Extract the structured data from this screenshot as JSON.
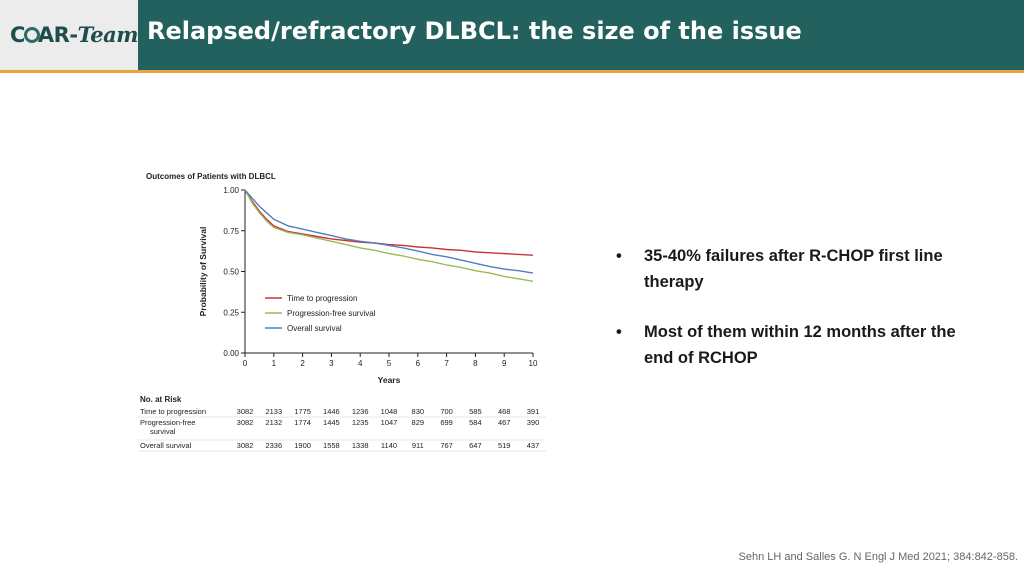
{
  "header": {
    "logo_prefix": "C",
    "logo_suffix": "AR-",
    "logo_team": "Team",
    "title": "Relapsed/refractory DLBCL: the size of the issue",
    "bg_color": "#23615e",
    "accent_color": "#e8a33c"
  },
  "bullets": [
    "35-40% failures after R-CHOP first line therapy",
    "Most of them within 12 months after the end of RCHOP"
  ],
  "citation": "Sehn LH and Salles G. N Engl J Med 2021; 384:842-858.",
  "chart_data": {
    "type": "line",
    "title": "Outcomes of Patients with DLBCL",
    "xlabel": "Years",
    "ylabel": "Probability of Survival",
    "xlim": [
      0,
      10
    ],
    "ylim": [
      0,
      1
    ],
    "xticks": [
      "0",
      "1",
      "2",
      "3",
      "4",
      "5",
      "6",
      "7",
      "8",
      "9",
      "10"
    ],
    "yticks": [
      "0.00",
      "0.25",
      "0.50",
      "0.75",
      "1.00"
    ],
    "legend_position": "lower-left",
    "series": [
      {
        "name": "Time to progression",
        "color": "#cc3333",
        "x": [
          0,
          0.25,
          0.5,
          0.75,
          1,
          1.5,
          2,
          2.5,
          3,
          3.5,
          4,
          4.5,
          5,
          5.5,
          6,
          6.5,
          7,
          7.5,
          8,
          8.5,
          9,
          9.5,
          10
        ],
        "y": [
          1.0,
          0.93,
          0.87,
          0.82,
          0.78,
          0.745,
          0.73,
          0.715,
          0.7,
          0.69,
          0.68,
          0.675,
          0.665,
          0.66,
          0.65,
          0.645,
          0.635,
          0.63,
          0.62,
          0.615,
          0.61,
          0.605,
          0.6
        ]
      },
      {
        "name": "Progression-free survival",
        "color": "#9bbb59",
        "x": [
          0,
          0.25,
          0.5,
          0.75,
          1,
          1.5,
          2,
          2.5,
          3,
          3.5,
          4,
          4.5,
          5,
          5.5,
          6,
          6.5,
          7,
          7.5,
          8,
          8.5,
          9,
          9.5,
          10
        ],
        "y": [
          1.0,
          0.92,
          0.86,
          0.81,
          0.77,
          0.74,
          0.725,
          0.705,
          0.685,
          0.665,
          0.645,
          0.63,
          0.61,
          0.595,
          0.575,
          0.56,
          0.54,
          0.525,
          0.505,
          0.49,
          0.47,
          0.455,
          0.44
        ]
      },
      {
        "name": "Overall survival",
        "color": "#4f81bd",
        "x": [
          0,
          0.25,
          0.5,
          0.75,
          1,
          1.5,
          2,
          2.5,
          3,
          3.5,
          4,
          4.5,
          5,
          5.5,
          6,
          6.5,
          7,
          7.5,
          8,
          8.5,
          9,
          9.5,
          10
        ],
        "y": [
          1.0,
          0.95,
          0.9,
          0.86,
          0.82,
          0.78,
          0.76,
          0.74,
          0.72,
          0.7,
          0.685,
          0.675,
          0.66,
          0.645,
          0.625,
          0.605,
          0.59,
          0.57,
          0.55,
          0.53,
          0.515,
          0.505,
          0.49
        ]
      }
    ],
    "risk_table": {
      "title": "No. at Risk",
      "rows": [
        {
          "label": [
            "Time to progression"
          ],
          "values": [
            "3082",
            "2133",
            "1775",
            "1446",
            "1236",
            "1048",
            "830",
            "700",
            "585",
            "468",
            "391"
          ]
        },
        {
          "label": [
            "Progression-free",
            "survival"
          ],
          "values": [
            "3082",
            "2132",
            "1774",
            "1445",
            "1235",
            "1047",
            "829",
            "699",
            "584",
            "467",
            "390"
          ]
        },
        {
          "label": [
            "Overall survival"
          ],
          "values": [
            "3082",
            "2336",
            "1900",
            "1558",
            "1338",
            "1140",
            "911",
            "767",
            "647",
            "519",
            "437"
          ]
        }
      ]
    }
  }
}
